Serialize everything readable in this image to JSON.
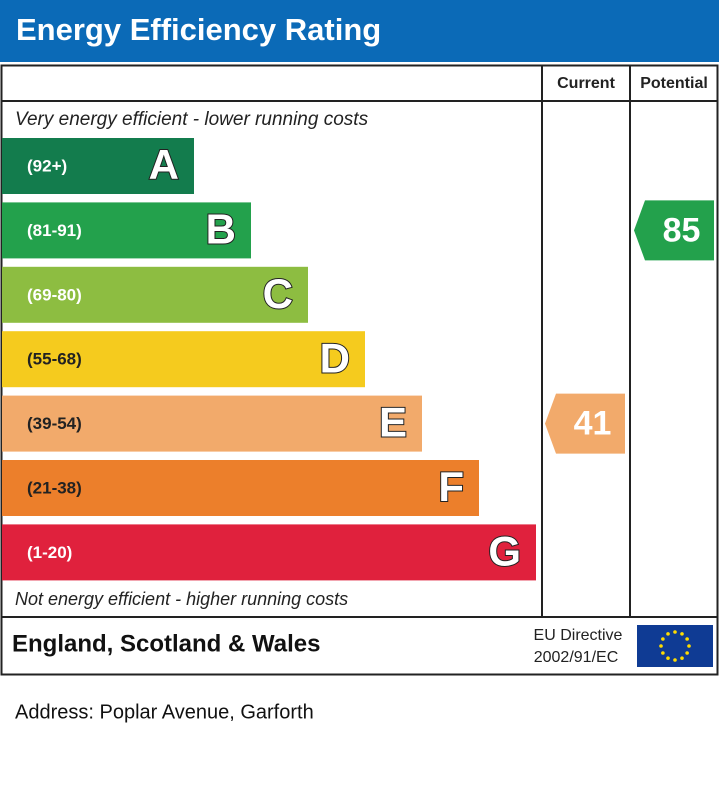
{
  "header": {
    "title": "Energy Efficiency Rating"
  },
  "columns": {
    "current": "Current",
    "potential": "Potential"
  },
  "top_note": "Very energy efficient - lower running costs",
  "bands": [
    {
      "range": "(92+)",
      "letter": "A",
      "color": "#137c4d"
    },
    {
      "range": "(81-91)",
      "letter": "B",
      "color": "#23a14c"
    },
    {
      "range": "(69-80)",
      "letter": "C",
      "color": "#8dbd41"
    },
    {
      "range": "(55-68)",
      "letter": "D",
      "color": "#f5cb1e"
    },
    {
      "range": "(39-54)",
      "letter": "E",
      "color": "#f2aa6b"
    },
    {
      "range": "(21-38)",
      "letter": "F",
      "color": "#ec7f2b"
    },
    {
      "range": "(1-20)",
      "letter": "G",
      "color": "#e0213d"
    }
  ],
  "bottom_note": "Not energy efficient - higher running costs",
  "current": {
    "value": 41,
    "letter": "E"
  },
  "potential": {
    "value": 85,
    "letter": "B"
  },
  "footer": {
    "region": "England, Scotland & Wales",
    "directive": [
      "EU Directive",
      "2002/91/EC"
    ]
  },
  "address": "Address: Poplar Avenue, Garforth"
}
